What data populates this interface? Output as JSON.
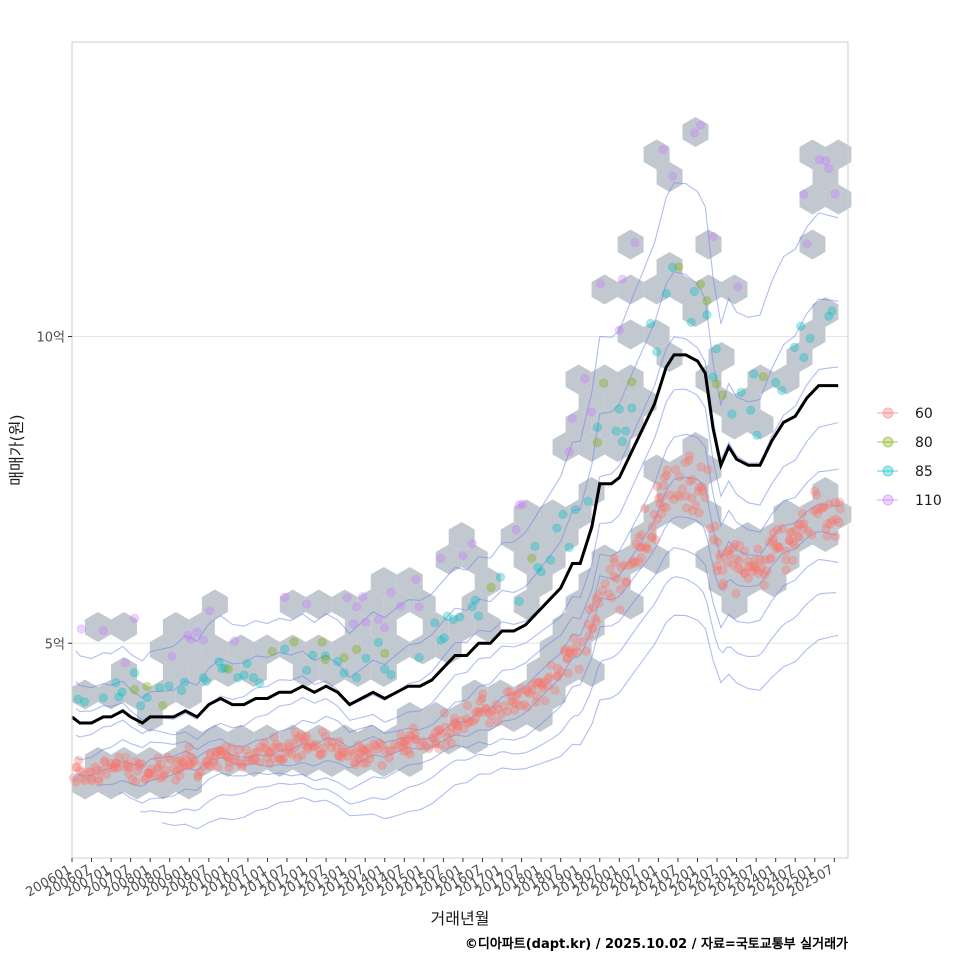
{
  "chart_data": {
    "type": "scatter",
    "xlabel": "거래년월",
    "ylabel": "매매가(원)",
    "caption": "©디아파트(dapt.kr) / 2025.10.02 / 자료=국토교통부 실거래가",
    "xlim": [
      2006.0,
      2025.85
    ],
    "ylim": [
      1.5,
      14.8
    ],
    "yticks": [
      {
        "value": 5,
        "label": "5억"
      },
      {
        "value": 10,
        "label": "10억"
      }
    ],
    "xticks": [
      "200601",
      "200607",
      "200701",
      "200707",
      "200801",
      "200807",
      "200901",
      "200907",
      "201001",
      "201007",
      "201101",
      "201107",
      "201201",
      "201207",
      "201301",
      "201307",
      "201401",
      "201407",
      "201501",
      "201507",
      "201601",
      "201607",
      "201701",
      "201707",
      "201801",
      "201807",
      "201901",
      "201907",
      "202001",
      "202007",
      "202101",
      "202107",
      "202201",
      "202207",
      "202301",
      "202307",
      "202401",
      "202407",
      "202501",
      "202507"
    ],
    "legend": {
      "position": "right",
      "entries": [
        {
          "label": "60",
          "color": "#f8766d"
        },
        {
          "label": "80",
          "color": "#7cae00"
        },
        {
          "label": "85",
          "color": "#00bfc4"
        },
        {
          "label": "110",
          "color": "#c77cff"
        }
      ]
    },
    "median_line": {
      "color": "#000000",
      "points": [
        [
          2006.0,
          3.8
        ],
        [
          2006.2,
          3.7
        ],
        [
          2006.5,
          3.7
        ],
        [
          2006.8,
          3.8
        ],
        [
          2007.0,
          3.8
        ],
        [
          2007.3,
          3.9
        ],
        [
          2007.5,
          3.8
        ],
        [
          2007.8,
          3.7
        ],
        [
          2008.0,
          3.8
        ],
        [
          2008.3,
          3.8
        ],
        [
          2008.6,
          3.8
        ],
        [
          2008.9,
          3.9
        ],
        [
          2009.2,
          3.8
        ],
        [
          2009.5,
          4.0
        ],
        [
          2009.8,
          4.1
        ],
        [
          2010.1,
          4.0
        ],
        [
          2010.4,
          4.0
        ],
        [
          2010.7,
          4.1
        ],
        [
          2011.0,
          4.1
        ],
        [
          2011.3,
          4.2
        ],
        [
          2011.6,
          4.2
        ],
        [
          2011.9,
          4.3
        ],
        [
          2012.2,
          4.2
        ],
        [
          2012.5,
          4.3
        ],
        [
          2012.8,
          4.2
        ],
        [
          2013.1,
          4.0
        ],
        [
          2013.4,
          4.1
        ],
        [
          2013.7,
          4.2
        ],
        [
          2014.0,
          4.1
        ],
        [
          2014.3,
          4.2
        ],
        [
          2014.6,
          4.3
        ],
        [
          2014.9,
          4.3
        ],
        [
          2015.2,
          4.4
        ],
        [
          2015.5,
          4.6
        ],
        [
          2015.8,
          4.8
        ],
        [
          2016.1,
          4.8
        ],
        [
          2016.4,
          5.0
        ],
        [
          2016.7,
          5.0
        ],
        [
          2017.0,
          5.2
        ],
        [
          2017.3,
          5.2
        ],
        [
          2017.6,
          5.3
        ],
        [
          2017.9,
          5.5
        ],
        [
          2018.2,
          5.7
        ],
        [
          2018.5,
          5.9
        ],
        [
          2018.8,
          6.3
        ],
        [
          2019.0,
          6.3
        ],
        [
          2019.3,
          6.9
        ],
        [
          2019.5,
          7.6
        ],
        [
          2019.8,
          7.6
        ],
        [
          2020.0,
          7.7
        ],
        [
          2020.3,
          8.1
        ],
        [
          2020.6,
          8.5
        ],
        [
          2020.9,
          8.9
        ],
        [
          2021.2,
          9.5
        ],
        [
          2021.4,
          9.7
        ],
        [
          2021.7,
          9.7
        ],
        [
          2022.0,
          9.6
        ],
        [
          2022.2,
          9.4
        ],
        [
          2022.4,
          8.5
        ],
        [
          2022.6,
          7.9
        ],
        [
          2022.8,
          8.2
        ],
        [
          2023.0,
          8.0
        ],
        [
          2023.3,
          7.9
        ],
        [
          2023.6,
          7.9
        ],
        [
          2023.9,
          8.3
        ],
        [
          2024.2,
          8.6
        ],
        [
          2024.5,
          8.7
        ],
        [
          2024.8,
          9.0
        ],
        [
          2025.1,
          9.2
        ],
        [
          2025.4,
          9.2
        ],
        [
          2025.6,
          9.2
        ]
      ]
    }
  }
}
